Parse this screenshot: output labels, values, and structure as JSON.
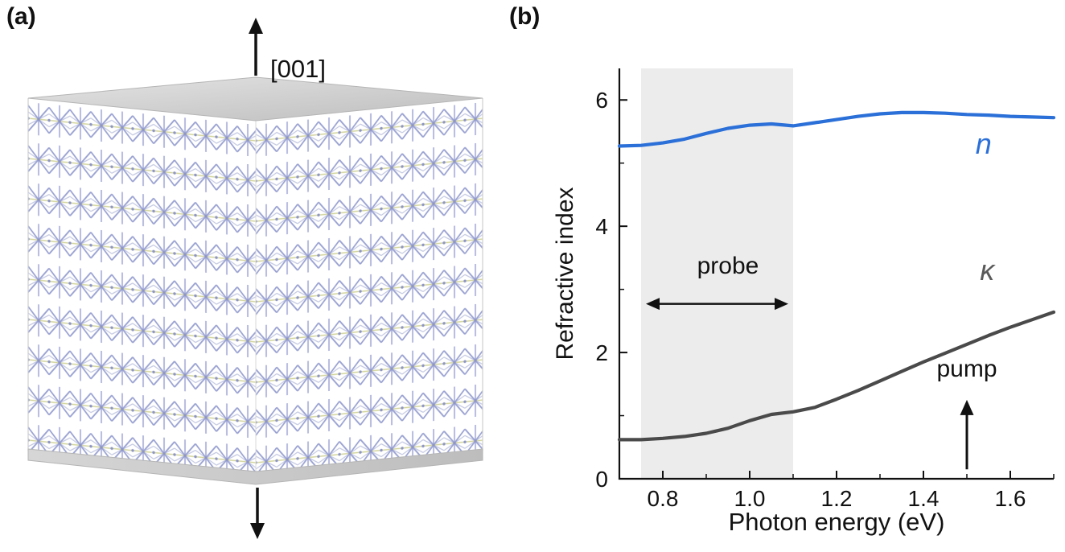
{
  "panel_a": {
    "label": "(a)",
    "axis_label": "[001]",
    "crystal": {
      "atom_color": "#9aa2d2",
      "bond_color": "#d2d49c",
      "face_color": "#d6d6d6",
      "layers": 9
    }
  },
  "panel_b": {
    "label": "(b)"
  },
  "chart_data": {
    "type": "line",
    "title": "",
    "xlabel": "Photon energy (eV)",
    "ylabel": "Refractive index",
    "xlim": [
      0.7,
      1.7
    ],
    "ylim": [
      0,
      6.5
    ],
    "grid": false,
    "band_color": "#ececec",
    "xticks": [
      {
        "v": 0.8,
        "label": "0.8"
      },
      {
        "v": 1.0,
        "label": "1.0"
      },
      {
        "v": 1.2,
        "label": "1.2"
      },
      {
        "v": 1.4,
        "label": "1.4"
      },
      {
        "v": 1.6,
        "label": "1.6"
      }
    ],
    "yticks": [
      {
        "v": 0,
        "label": "0"
      },
      {
        "v": 2,
        "label": "2"
      },
      {
        "v": 4,
        "label": "4"
      },
      {
        "v": 6,
        "label": "6"
      }
    ],
    "x_minor": [
      0.9,
      1.1,
      1.3,
      1.5,
      1.7
    ],
    "y_minor": [
      1,
      3,
      5
    ],
    "x": [
      0.7,
      0.75,
      0.8,
      0.85,
      0.9,
      0.95,
      1.0,
      1.05,
      1.1,
      1.15,
      1.2,
      1.25,
      1.3,
      1.35,
      1.4,
      1.45,
      1.5,
      1.55,
      1.6,
      1.65,
      1.7
    ],
    "series": [
      {
        "key": "n",
        "name": "n",
        "color": "#2b6fd8",
        "label_color": "#2b6fd8",
        "label_x": 1.52,
        "label_y": 5.15,
        "values": [
          5.27,
          5.28,
          5.32,
          5.38,
          5.47,
          5.55,
          5.6,
          5.62,
          5.59,
          5.64,
          5.69,
          5.74,
          5.78,
          5.8,
          5.8,
          5.79,
          5.77,
          5.76,
          5.74,
          5.73,
          5.72
        ]
      },
      {
        "key": "kappa",
        "name": "κ",
        "color": "#4a4a4a",
        "label_color": "#5a5a5a",
        "label_x": 1.53,
        "label_y": 3.15,
        "values": [
          0.62,
          0.62,
          0.64,
          0.67,
          0.72,
          0.8,
          0.92,
          1.02,
          1.06,
          1.13,
          1.26,
          1.4,
          1.55,
          1.7,
          1.85,
          1.99,
          2.13,
          2.27,
          2.4,
          2.52,
          2.64
        ]
      }
    ],
    "annotations": {
      "probe": {
        "label": "probe",
        "range": [
          0.75,
          1.1
        ],
        "arrow_y": 2.77,
        "label_x": 0.95,
        "label_y": 3.25
      },
      "pump": {
        "label": "pump",
        "x": 1.5,
        "y0": 0.15,
        "y1": 1.25,
        "label_y": 1.62
      }
    }
  }
}
